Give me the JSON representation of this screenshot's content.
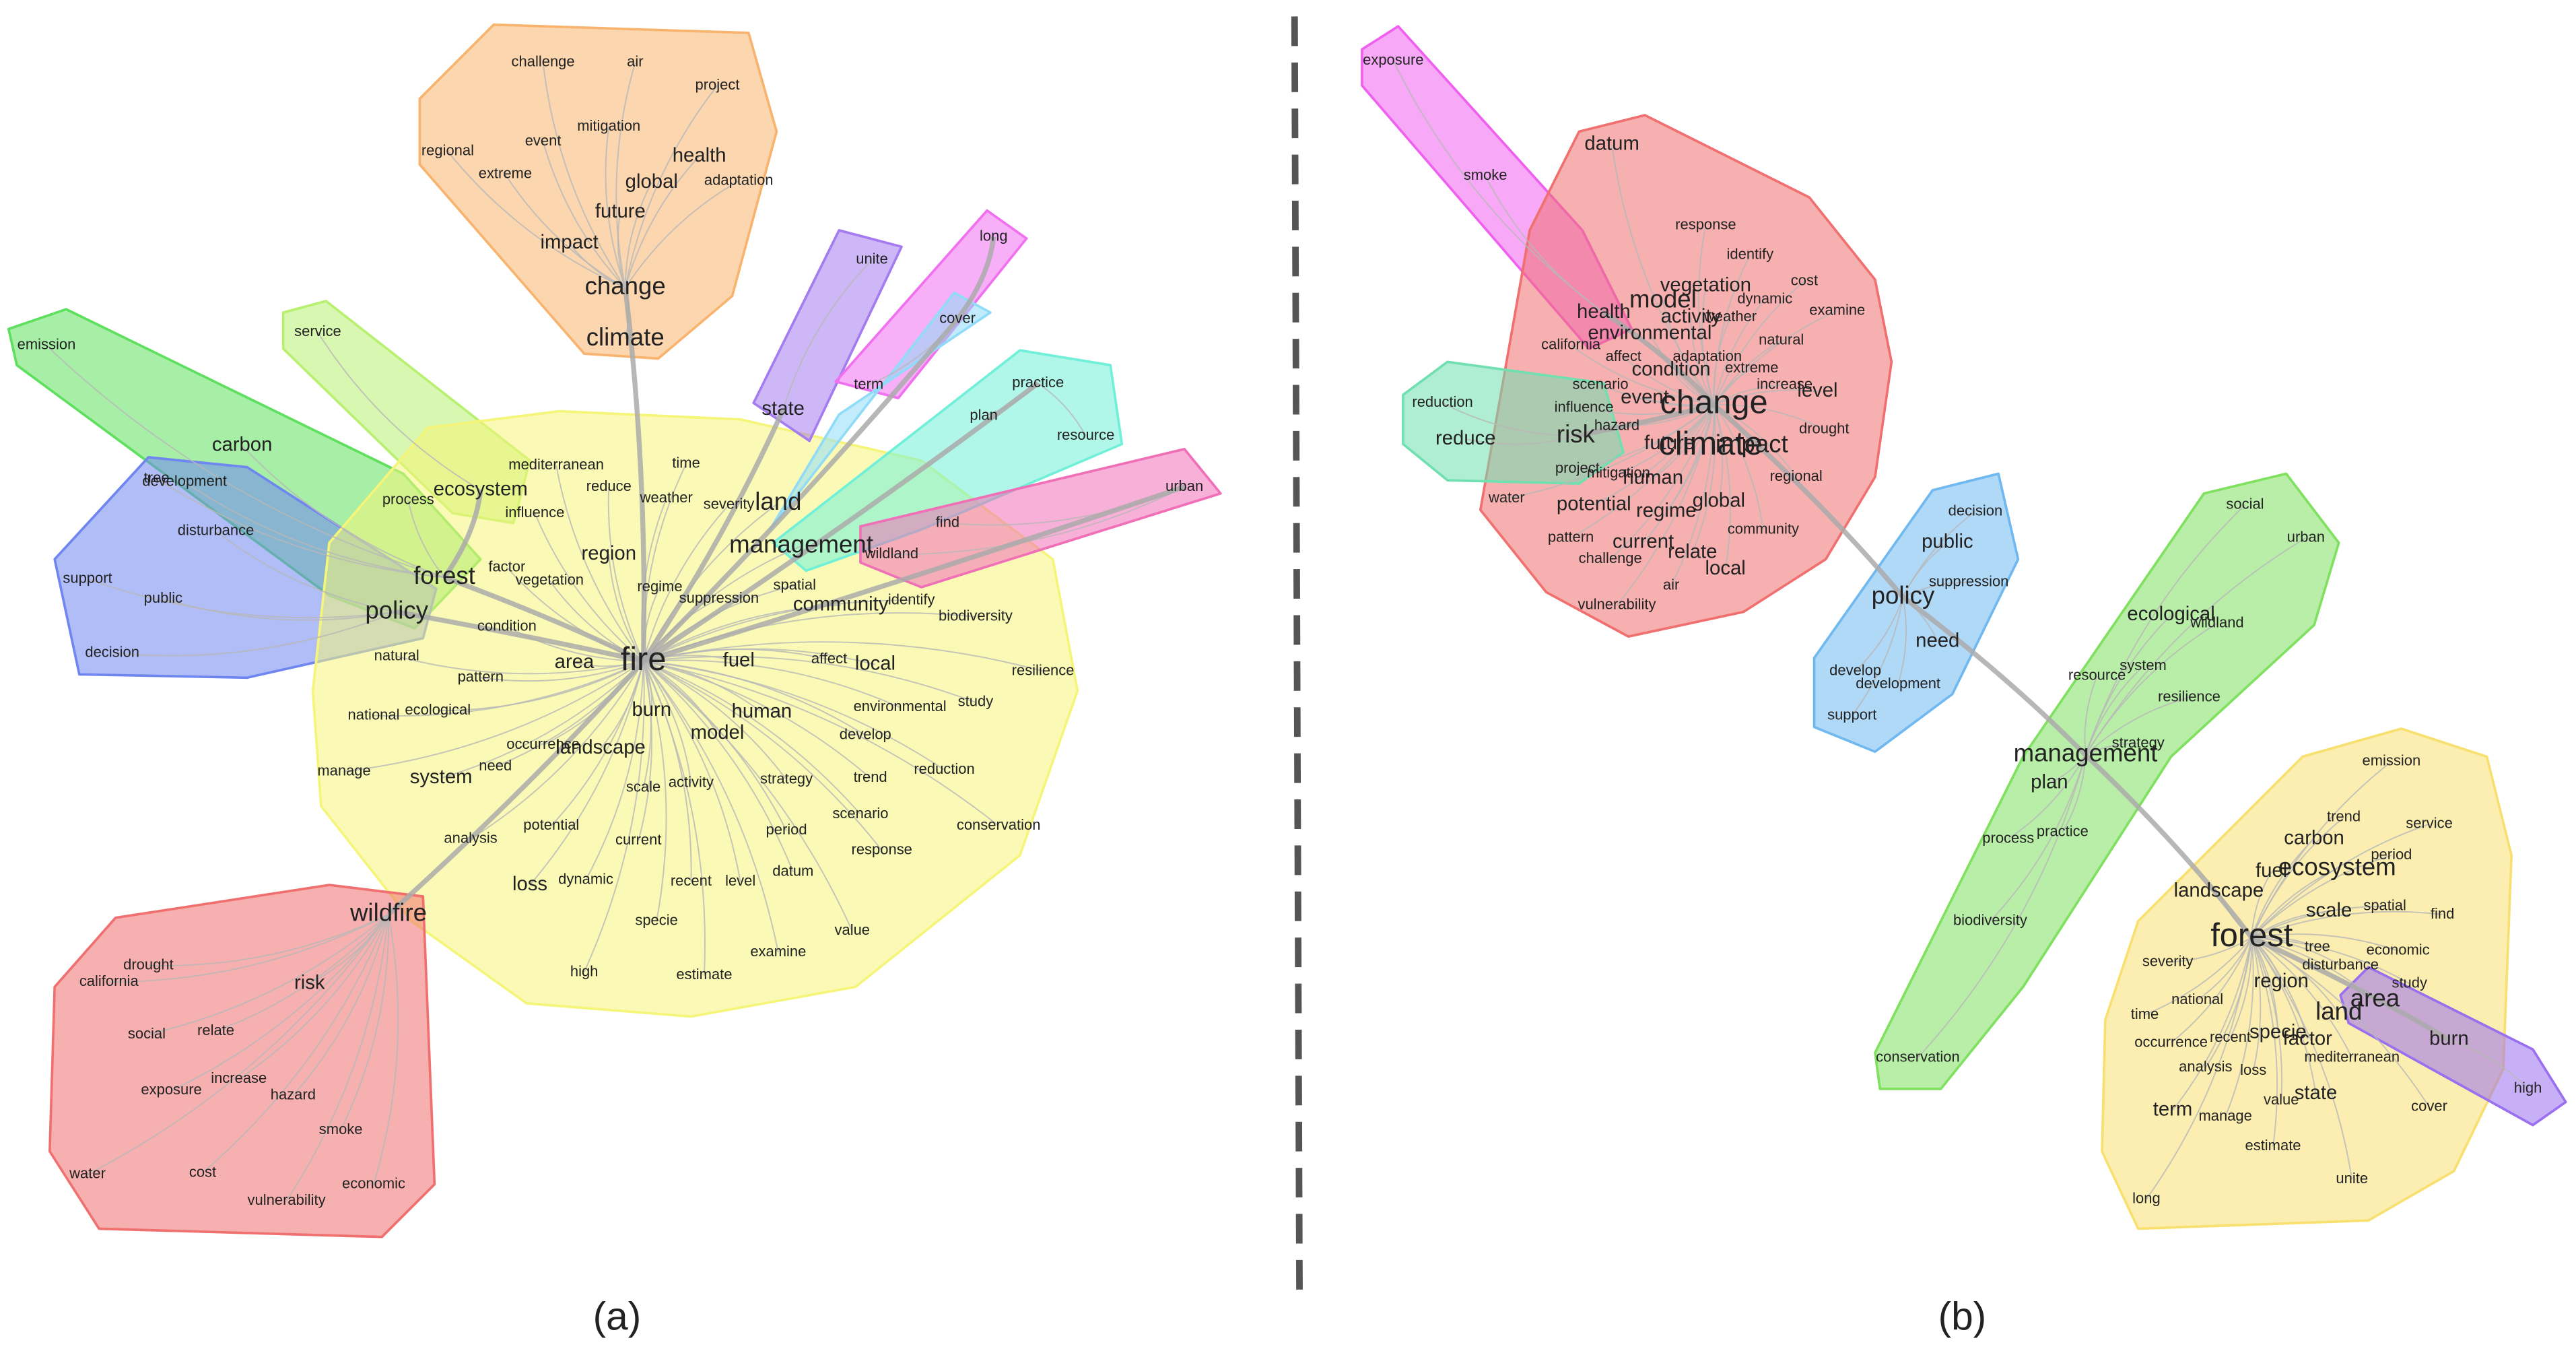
{
  "panels": [
    {
      "label": "(a)",
      "clusters": [
        {
          "color": "#f8b46e",
          "words": [
            "challenge",
            "air",
            "project",
            "mitigation",
            "event",
            "regional",
            "health",
            "extreme",
            "global",
            "adaptation",
            "future",
            "impact",
            "change",
            "climate"
          ]
        },
        {
          "color": "#5ee05e",
          "words": [
            "emission",
            "carbon",
            "tree",
            "development",
            "process",
            "forest"
          ]
        },
        {
          "color": "#b8f070",
          "words": [
            "service",
            "ecosystem"
          ]
        },
        {
          "color": "#6f86f0",
          "words": [
            "disturbance",
            "support",
            "public",
            "decision",
            "policy"
          ]
        },
        {
          "color": "#f5f57a",
          "words": [
            "fire",
            "area",
            "mediterranean",
            "time",
            "reduce",
            "weather",
            "severity",
            "land",
            "influence",
            "region",
            "management",
            "factor",
            "vegetation",
            "regime",
            "spatial",
            "suppression",
            "community",
            "identify",
            "biodiversity",
            "condition",
            "natural",
            "fuel",
            "affect",
            "local",
            "resilience",
            "pattern",
            "burn",
            "human",
            "environmental",
            "study",
            "national",
            "ecological",
            "model",
            "develop",
            "occurrence",
            "landscape",
            "need",
            "manage",
            "system",
            "activity",
            "strategy",
            "trend",
            "reduction",
            "scale",
            "scenario",
            "analysis",
            "potential",
            "conservation",
            "current",
            "period",
            "response",
            "loss",
            "dynamic",
            "recent",
            "level",
            "datum",
            "specie",
            "value",
            "examine",
            "high",
            "estimate"
          ]
        },
        {
          "color": "#a47cf0",
          "words": [
            "state",
            "unite"
          ]
        },
        {
          "color": "#f070f0",
          "words": [
            "long"
          ]
        },
        {
          "color": "#90dcf8",
          "words": [
            "cover",
            "term"
          ]
        },
        {
          "color": "#70f0d8",
          "words": [
            "practice",
            "plan",
            "resource"
          ]
        },
        {
          "color": "#f070b8",
          "words": [
            "urban",
            "find",
            "wildland"
          ]
        },
        {
          "color": "#f07070",
          "words": [
            "wildfire",
            "drought",
            "california",
            "risk",
            "social",
            "relate",
            "increase",
            "exposure",
            "hazard",
            "smoke",
            "water",
            "cost",
            "economic",
            "vulnerability"
          ]
        }
      ]
    },
    {
      "label": "(b)",
      "clusters": [
        {
          "color": "#f060f0",
          "words": [
            "exposure",
            "smoke",
            "health"
          ]
        },
        {
          "color": "#f07070",
          "words": [
            "change",
            "climate",
            "datum",
            "response",
            "identify",
            "cost",
            "dynamic",
            "examine",
            "vegetation",
            "model",
            "activity",
            "weather",
            "environmental",
            "natural",
            "california",
            "affect",
            "adaptation",
            "extreme",
            "condition",
            "scenario",
            "increase",
            "level",
            "event",
            "influence",
            "hazard",
            "drought",
            "future",
            "impact",
            "project",
            "mitigation",
            "human",
            "regional",
            "global",
            "potential",
            "regime",
            "community",
            "pattern",
            "current",
            "relate",
            "challenge",
            "local",
            "air",
            "vulnerability",
            "water"
          ]
        },
        {
          "color": "#70e0b0",
          "words": [
            "reduction",
            "reduce",
            "risk"
          ]
        },
        {
          "color": "#70b8f0",
          "words": [
            "policy",
            "decision",
            "public",
            "suppression",
            "need",
            "develop",
            "development",
            "support"
          ]
        },
        {
          "color": "#80e060",
          "words": [
            "management",
            "social",
            "urban",
            "ecological",
            "wildland",
            "resource",
            "system",
            "resilience",
            "strategy",
            "plan",
            "process",
            "practice",
            "biodiversity",
            "conservation"
          ]
        },
        {
          "color": "#f8e070",
          "words": [
            "forest",
            "emission",
            "trend",
            "service",
            "carbon",
            "period",
            "fuel",
            "ecosystem",
            "landscape",
            "scale",
            "spatial",
            "find",
            "tree",
            "economic",
            "severity",
            "disturbance",
            "region",
            "study",
            "area",
            "national",
            "time",
            "land",
            "recent",
            "specie",
            "factor",
            "occurrence",
            "mediterranean",
            "analysis",
            "loss",
            "state",
            "value",
            "cover",
            "term",
            "manage",
            "estimate",
            "unite",
            "long"
          ]
        },
        {
          "color": "#9a70f0",
          "words": [
            "burn",
            "high"
          ]
        }
      ]
    }
  ]
}
